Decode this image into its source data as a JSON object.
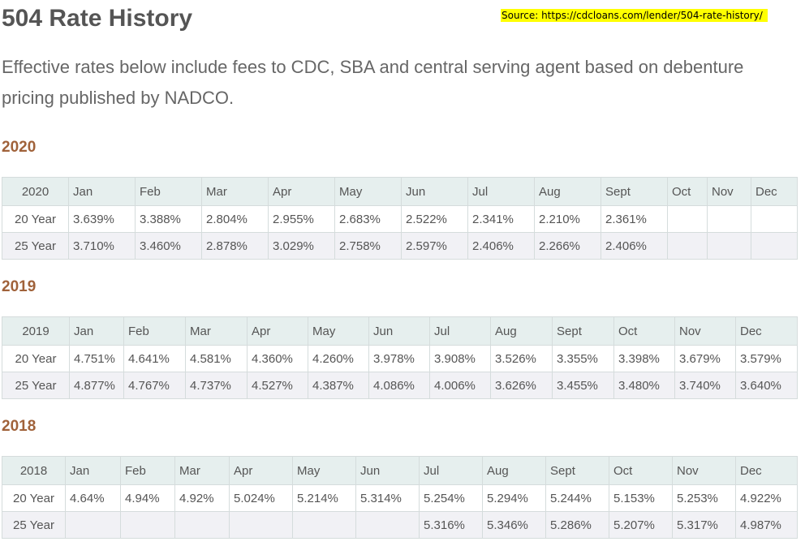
{
  "title": "504 Rate History",
  "source_note": "Source: https://cdcloans.com/lender/504-rate-history/",
  "intro": "Effective rates below include fees to CDC, SBA and central serving agent based on debenture pricing published by NADCO.",
  "sections": [
    {
      "heading": "2020",
      "header": [
        "2020",
        "Jan",
        "Feb",
        "Mar",
        "Apr",
        "May",
        "Jun",
        "Jul",
        "Aug",
        "Sept",
        "Oct",
        "Nov",
        "Dec"
      ],
      "rows": [
        [
          "20 Year",
          "3.639%",
          "3.388%",
          "2.804%",
          "2.955%",
          "2.683%",
          "2.522%",
          "2.341%",
          "2.210%",
          "2.361%",
          "",
          "",
          ""
        ],
        [
          "25 Year",
          "3.710%",
          "3.460%",
          "2.878%",
          "3.029%",
          "2.758%",
          "2.597%",
          "2.406%",
          "2.266%",
          "2.406%",
          "",
          "",
          ""
        ]
      ]
    },
    {
      "heading": "2019",
      "header": [
        "2019",
        "Jan",
        "Feb",
        "Mar",
        "Apr",
        "May",
        "Jun",
        "Jul",
        "Aug",
        "Sept",
        "Oct",
        "Nov",
        "Dec"
      ],
      "rows": [
        [
          "20 Year",
          "4.751%",
          "4.641%",
          "4.581%",
          "4.360%",
          "4.260%",
          "3.978%",
          "3.908%",
          "3.526%",
          "3.355%",
          "3.398%",
          "3.679%",
          "3.579%"
        ],
        [
          "25 Year",
          "4.877%",
          "4.767%",
          "4.737%",
          "4.527%",
          "4.387%",
          "4.086%",
          "4.006%",
          "3.626%",
          "3.455%",
          "3.480%",
          "3.740%",
          "3.640%"
        ]
      ]
    },
    {
      "heading": "2018",
      "header": [
        "2018",
        "Jan",
        "Feb",
        "Mar",
        "Apr",
        "May",
        "Jun",
        "Jul",
        "Aug",
        "Sept",
        "Oct",
        "Nov",
        "Dec"
      ],
      "rows": [
        [
          "20 Year",
          "4.64%",
          "4.94%",
          "4.92%",
          "5.024%",
          "5.214%",
          "5.314%",
          "5.254%",
          "5.294%",
          "5.244%",
          "5.153%",
          "5.253%",
          "4.922%"
        ],
        [
          "25 Year",
          "",
          "",
          "",
          "",
          "",
          "",
          "5.316%",
          "5.346%",
          "5.286%",
          "5.207%",
          "5.317%",
          "4.987%"
        ]
      ]
    }
  ]
}
